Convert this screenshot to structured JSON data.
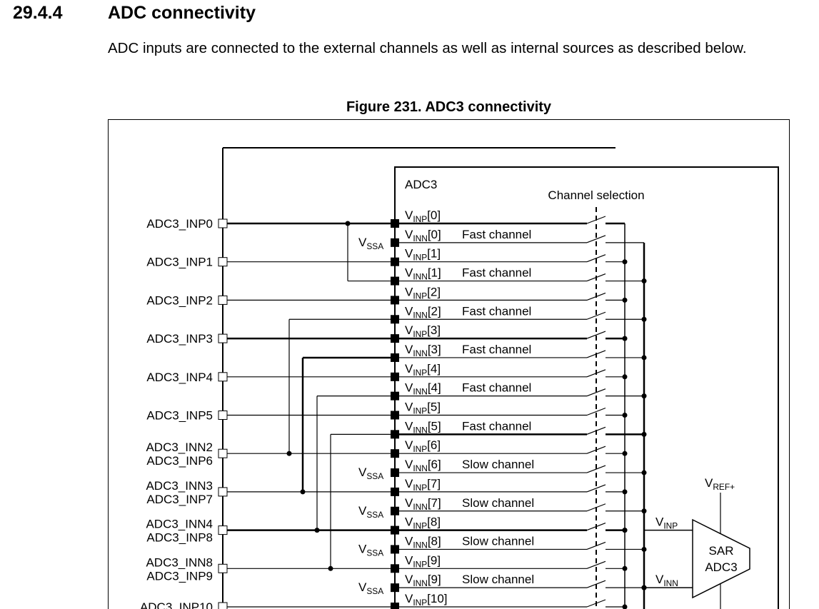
{
  "section": {
    "number": "29.4.4",
    "title": "ADC connectivity",
    "paragraph": "ADC inputs are connected to the external channels as well as internal sources as described below."
  },
  "figure": {
    "caption": "Figure 231. ADC3 connectivity",
    "block_label": "ADC3",
    "channel_selection_label": "Channel selection",
    "vssa": {
      "base": "V",
      "sub": "SSA"
    },
    "vref": {
      "base": "V",
      "sub": "REF+"
    },
    "adc_inp": {
      "base": "V",
      "sub": "INP"
    },
    "adc_inn": {
      "base": "V",
      "sub": "INN"
    },
    "sar_line1": "SAR",
    "sar_line2": "ADC3",
    "external_pins": [
      {
        "lines": [
          "ADC3_INP0"
        ]
      },
      {
        "lines": [
          "ADC3_INP1"
        ]
      },
      {
        "lines": [
          "ADC3_INP2"
        ]
      },
      {
        "lines": [
          "ADC3_INP3"
        ]
      },
      {
        "lines": [
          "ADC3_INP4"
        ]
      },
      {
        "lines": [
          "ADC3_INP5"
        ]
      },
      {
        "lines": [
          "ADC3_INN2",
          "ADC3_INP6"
        ]
      },
      {
        "lines": [
          "ADC3_INN3",
          "ADC3_INP7"
        ]
      },
      {
        "lines": [
          "ADC3_INN4",
          "ADC3_INP8"
        ]
      },
      {
        "lines": [
          "ADC3_INN8",
          "ADC3_INP9"
        ]
      },
      {
        "lines": [
          "ADC3_INP10"
        ]
      }
    ],
    "channels": [
      {
        "base": "V",
        "sub": "INP",
        "suffix": "[0]",
        "type": ""
      },
      {
        "base": "V",
        "sub": "INN",
        "suffix": "[0]",
        "type": "Fast channel"
      },
      {
        "base": "V",
        "sub": "INP",
        "suffix": "[1]",
        "type": ""
      },
      {
        "base": "V",
        "sub": "INN",
        "suffix": "[1]",
        "type": "Fast channel"
      },
      {
        "base": "V",
        "sub": "INP",
        "suffix": "[2]",
        "type": ""
      },
      {
        "base": "V",
        "sub": "INN",
        "suffix": "[2]",
        "type": "Fast channel"
      },
      {
        "base": "V",
        "sub": "INP",
        "suffix": "[3]",
        "type": ""
      },
      {
        "base": "V",
        "sub": "INN",
        "suffix": "[3]",
        "type": "Fast channel"
      },
      {
        "base": "V",
        "sub": "INP",
        "suffix": "[4]",
        "type": ""
      },
      {
        "base": "V",
        "sub": "INN",
        "suffix": "[4]",
        "type": "Fast channel"
      },
      {
        "base": "V",
        "sub": "INP",
        "suffix": "[5]",
        "type": ""
      },
      {
        "base": "V",
        "sub": "INN",
        "suffix": "[5]",
        "type": "Fast channel"
      },
      {
        "base": "V",
        "sub": "INP",
        "suffix": "[6]",
        "type": ""
      },
      {
        "base": "V",
        "sub": "INN",
        "suffix": "[6]",
        "type": "Slow channel"
      },
      {
        "base": "V",
        "sub": "INP",
        "suffix": "[7]",
        "type": ""
      },
      {
        "base": "V",
        "sub": "INN",
        "suffix": "[7]",
        "type": "Slow channel"
      },
      {
        "base": "V",
        "sub": "INP",
        "suffix": "[8]",
        "type": ""
      },
      {
        "base": "V",
        "sub": "INN",
        "suffix": "[8]",
        "type": "Slow channel"
      },
      {
        "base": "V",
        "sub": "INP",
        "suffix": "[9]",
        "type": ""
      },
      {
        "base": "V",
        "sub": "INN",
        "suffix": "[9]",
        "type": "Slow channel"
      },
      {
        "base": "V",
        "sub": "INP",
        "suffix": "[10]",
        "type": ""
      }
    ]
  }
}
